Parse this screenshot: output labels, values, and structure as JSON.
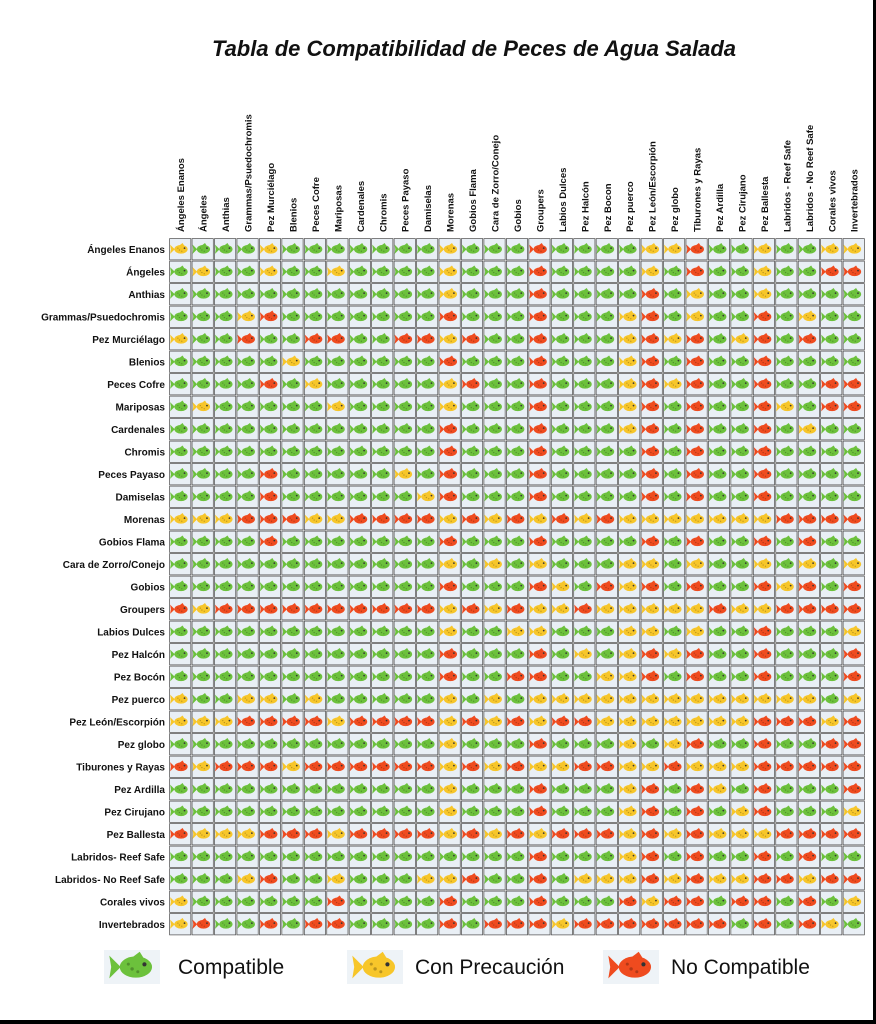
{
  "chart_data": {
    "type": "heatmap",
    "title": "Tabla de Compatibilidad de Peces de Agua Salada",
    "column_labels": [
      "Ángeles Enanos",
      "Ángeles",
      "Anthias",
      "Grammas/Psuedochromis",
      "Pez Murciélago",
      "Blenios",
      "Peces Cofre",
      "Mariposas",
      "Cardenales",
      "Chromis",
      "Peces Payaso",
      "Damiselas",
      "Morenas",
      "Gobios Flama",
      "Cara de Zorro/Conejo",
      "Gobios",
      "Groupers",
      "Labios Dulces",
      "Pez Halcón",
      "Pez Bocon",
      "Pez puerco",
      "Pez León/Escorpión",
      "Pez globo",
      "Tiburones y Rayas",
      "Pez Ardilla",
      "Pez Cirujano",
      "Pez Ballesta",
      "Labridos - Reef Safe",
      "Labridos - No Reef Safe",
      "Corales vivos",
      "Invertebrados"
    ],
    "row_labels": [
      "Ángeles Enanos",
      "Ángeles",
      "Anthias",
      "Grammas/Psuedochromis",
      "Pez Murciélago",
      "Blenios",
      "Peces Cofre",
      "Mariposas",
      "Cardenales",
      "Chromis",
      "Peces Payaso",
      "Damiselas",
      "Morenas",
      "Gobios Flama",
      "Cara de Zorro/Conejo",
      "Gobios",
      "Groupers",
      "Labios Dulces",
      "Pez Halcón",
      "Pez Bocón",
      "Pez puerco",
      "Pez León/Escorpión",
      "Pez globo",
      "Tiburones y Rayas",
      "Pez Ardilla",
      "Pez Cirujano",
      "Pez Ballesta",
      "Labridos- Reef Safe",
      "Labridos- No Reef Safe",
      "Corales vivos",
      "Invertebrados"
    ],
    "categories": {
      "C": "Compatible",
      "P": "Con Precaución",
      "N": "No Compatible"
    },
    "values": [
      "PCCCPCCCCCCCPCCCNCCCCPPNCCPCCPP",
      "CPCCPCCPCCCCPCCCNCCCCPCNCCPCCNN",
      "CCCCCCCCCCCCPCCCNCCCCNCPCCPCCCC",
      "CCCPNCCCCCCCNCCCNCCCPNCPCCNCPCC",
      "PCCNCCNNCCNNPNCCNCCCPNPNCPNCNCC",
      "CCCCCPCCCCCCNCCCNCCCPNCNCCNCCCC",
      "CCCCNCPCCCCCPNCCNCCCPNPNCCNCCNN",
      "CPCCCCCPCCCCPCCCNCCCPNCNCCNPCNN",
      "CCCCCCCCCCCCNCCCNCCCPNCNCCNCPCC",
      "CCCCCCCCCCCCNCCCNCCCCNCNCCNCCCC",
      "CCCCNCCCCCPCNCCCNCCCCNCNCCNCCCC",
      "CCCCNCCCCCCPNCCCNCCCCNCNCCNCCCC",
      "PPPNNNPPNNNNPNPNPNPNPPPPPPPNNNN",
      "CCCCNCCCCCCCNCCCNCCCCNCNCCNCNCC",
      "CCCCCCCCCCCCPCPCPCCCPPCPCCPCPCP",
      "CCCCCCCCCCCCNCCCNPCNPNCNCCNPNCN",
      "NPNNNNNNNNNNPNPNPPNPPPPPNPPNNNN",
      "CCCCCCCCCCCCPCCPPCCCPPCPCCNCCCP",
      "CCCCCCCCCCCCNCCCNCPCPNPNCCNCCCN",
      "CCCCCCCCCCCCNCCNNCCPPNCNCCNCCCN",
      "PCCPPCPCCCCCPCPCPPPPPPPPPPPPPCP",
      "PPPNNNNPNNNNPNPNPNNPPPPPPPNNNPN",
      "CCCCCCCCCCCCPCCCNCCCPCPNCCNCCNN",
      "NPNNNPNNNNNNPNPNPPNNPPNPPPNNNNN",
      "CCCCCCCCCCCCPCCCNCCCPNCNPCNCCCN",
      "CCCCCCCCCCCCPCCCNCCCPNCNCPNCCCP",
      "NPPPNNNPNNNNPNPNPNNNPNPNPPPNNNN",
      "CCCCCCCCCCCCCCCCNCCCPNCNCCNCNCC",
      "CCCPNCCPCCCPPNCCNCPPPNPNPPNNPNN",
      "PCCCCCCNCCCCNCCCNCCCNPNNCNNCNCP",
      "PNCCNCNNCCCCNCNNNPNNNNNNNCNCNPC"
    ]
  },
  "legend": {
    "items": [
      {
        "label": "Compatible",
        "color": "#6cc13c"
      },
      {
        "label": "Con Precaución",
        "color": "#f7c62a"
      },
      {
        "label": "No Compatible",
        "color": "#ef4b1f"
      }
    ]
  },
  "colors": {
    "compatible": "#6cc13c",
    "caution": "#f7c62a",
    "not_compatible": "#ef4b1f",
    "cell_fill": "#e9eff5",
    "grid_line": "#4a4a4a"
  }
}
